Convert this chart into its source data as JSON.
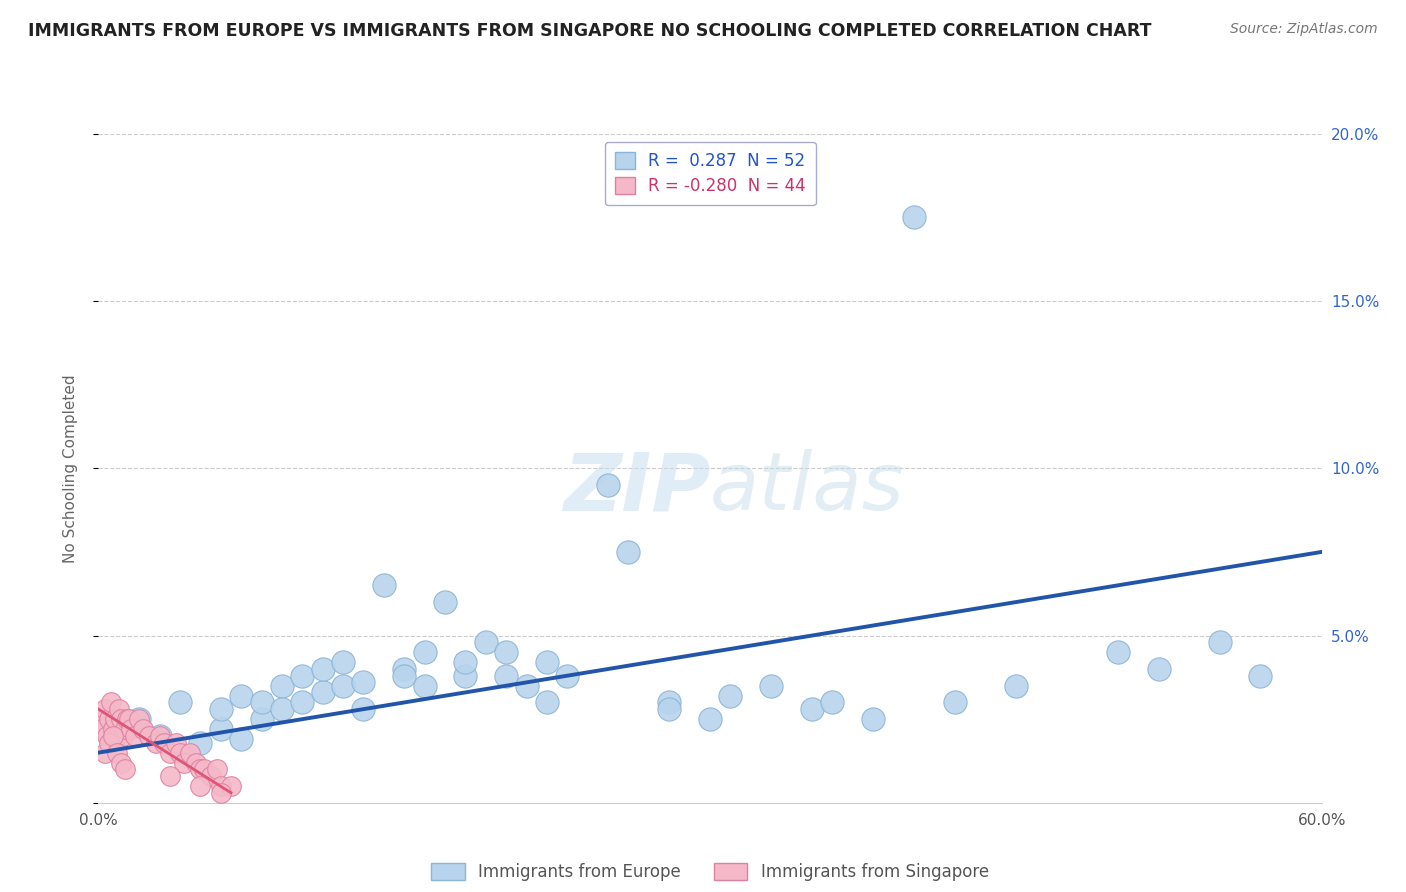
{
  "title": "IMMIGRANTS FROM EUROPE VS IMMIGRANTS FROM SINGAPORE NO SCHOOLING COMPLETED CORRELATION CHART",
  "source": "Source: ZipAtlas.com",
  "ylabel": "No Schooling Completed",
  "xlim": [
    0,
    0.6
  ],
  "ylim": [
    0,
    0.2
  ],
  "xticks": [
    0.0,
    0.1,
    0.2,
    0.3,
    0.4,
    0.5,
    0.6
  ],
  "yticks": [
    0.0,
    0.05,
    0.1,
    0.15,
    0.2
  ],
  "xtick_labels": [
    "0.0%",
    "",
    "",
    "",
    "",
    "",
    "60.0%"
  ],
  "ytick_labels_right_blue": [
    "",
    "5.0%",
    "10.0%",
    "15.0%",
    "20.0%"
  ],
  "legend_r1_text": "R =  0.287  N = 52",
  "legend_r2_text": "R = -0.280  N = 44",
  "blue_color": "#b8d4ed",
  "blue_edge_color": "#8ab4d8",
  "pink_color": "#f4b8c8",
  "pink_edge_color": "#e080a0",
  "blue_line_color": "#2255aa",
  "pink_line_color": "#dd5577",
  "blue_label": "Immigrants from Europe",
  "pink_label": "Immigrants from Singapore",
  "blue_legend_text_color": "#2255cc",
  "pink_legend_text_color": "#cc3366",
  "right_tick_color": "#3366cc",
  "watermark_color": "#d8e8f5",
  "blue_line_x": [
    0.0,
    0.6
  ],
  "blue_line_y": [
    0.015,
    0.075
  ],
  "pink_line_x": [
    0.0,
    0.065
  ],
  "pink_line_y": [
    0.028,
    0.003
  ],
  "blue_scatter_x": [
    0.02,
    0.03,
    0.04,
    0.05,
    0.06,
    0.06,
    0.07,
    0.07,
    0.08,
    0.08,
    0.09,
    0.09,
    0.1,
    0.1,
    0.11,
    0.11,
    0.12,
    0.12,
    0.13,
    0.13,
    0.14,
    0.15,
    0.15,
    0.16,
    0.16,
    0.17,
    0.18,
    0.18,
    0.19,
    0.2,
    0.2,
    0.21,
    0.22,
    0.22,
    0.23,
    0.25,
    0.26,
    0.28,
    0.28,
    0.3,
    0.31,
    0.33,
    0.35,
    0.36,
    0.38,
    0.4,
    0.42,
    0.45,
    0.5,
    0.52,
    0.55,
    0.57
  ],
  "blue_scatter_y": [
    0.025,
    0.02,
    0.03,
    0.018,
    0.022,
    0.028,
    0.019,
    0.032,
    0.025,
    0.03,
    0.035,
    0.028,
    0.038,
    0.03,
    0.033,
    0.04,
    0.035,
    0.042,
    0.028,
    0.036,
    0.065,
    0.04,
    0.038,
    0.045,
    0.035,
    0.06,
    0.038,
    0.042,
    0.048,
    0.038,
    0.045,
    0.035,
    0.042,
    0.03,
    0.038,
    0.095,
    0.075,
    0.03,
    0.028,
    0.025,
    0.032,
    0.035,
    0.028,
    0.03,
    0.025,
    0.175,
    0.03,
    0.035,
    0.045,
    0.04,
    0.048,
    0.038
  ],
  "pink_scatter_x": [
    0.001,
    0.002,
    0.003,
    0.004,
    0.005,
    0.006,
    0.007,
    0.008,
    0.009,
    0.01,
    0.011,
    0.012,
    0.013,
    0.014,
    0.015,
    0.016,
    0.018,
    0.02,
    0.022,
    0.025,
    0.028,
    0.03,
    0.032,
    0.035,
    0.038,
    0.04,
    0.042,
    0.045,
    0.048,
    0.05,
    0.052,
    0.055,
    0.058,
    0.06,
    0.065,
    0.003,
    0.005,
    0.007,
    0.009,
    0.011,
    0.013,
    0.06,
    0.05,
    0.035
  ],
  "pink_scatter_y": [
    0.025,
    0.022,
    0.028,
    0.02,
    0.025,
    0.03,
    0.022,
    0.025,
    0.02,
    0.028,
    0.025,
    0.02,
    0.022,
    0.025,
    0.025,
    0.022,
    0.02,
    0.025,
    0.022,
    0.02,
    0.018,
    0.02,
    0.018,
    0.015,
    0.018,
    0.015,
    0.012,
    0.015,
    0.012,
    0.01,
    0.01,
    0.008,
    0.01,
    0.005,
    0.005,
    0.015,
    0.018,
    0.02,
    0.015,
    0.012,
    0.01,
    0.003,
    0.005,
    0.008
  ]
}
